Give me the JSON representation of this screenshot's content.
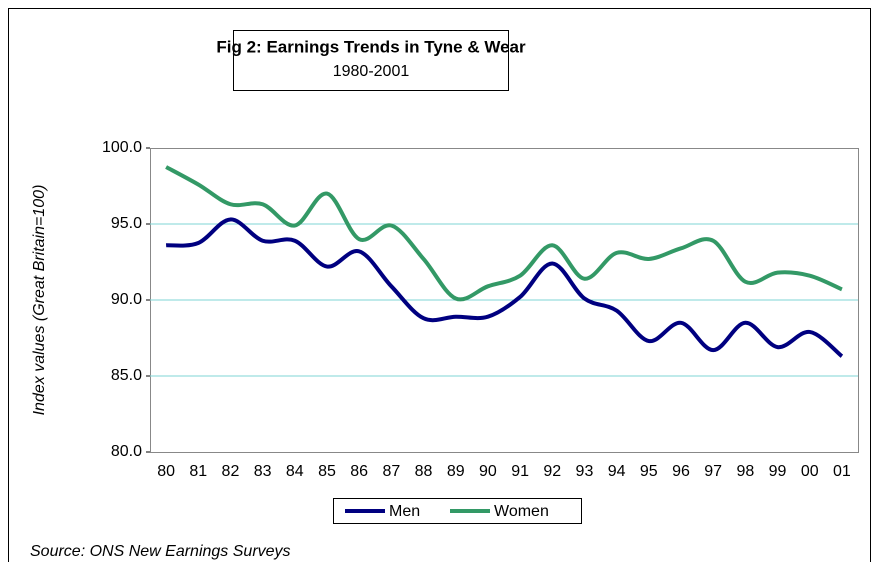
{
  "chart_data": {
    "type": "line",
    "title": "Fig 2: Earnings Trends in Tyne & Wear",
    "subtitle": "1980-2001",
    "y_label": "Index values (Great Britain=100)",
    "source": "Source: ONS New Earnings Surveys",
    "categories": [
      "80",
      "81",
      "82",
      "83",
      "84",
      "85",
      "86",
      "87",
      "88",
      "89",
      "90",
      "91",
      "92",
      "93",
      "94",
      "95",
      "96",
      "97",
      "98",
      "99",
      "00",
      "01"
    ],
    "series": [
      {
        "name": "Men",
        "color": "#000080",
        "values": [
          93.6,
          93.75,
          95.3,
          93.9,
          93.9,
          92.2,
          93.2,
          90.9,
          88.8,
          88.9,
          88.9,
          90.2,
          92.4,
          90.1,
          89.3,
          87.3,
          88.5,
          86.7,
          88.5,
          86.9,
          87.9,
          86.3
        ]
      },
      {
        "name": "Women",
        "color": "#339966",
        "values": [
          98.75,
          97.6,
          96.3,
          96.3,
          94.9,
          97.0,
          94.0,
          94.9,
          92.7,
          90.1,
          90.9,
          91.6,
          93.6,
          91.4,
          93.1,
          92.7,
          93.4,
          93.9,
          91.2,
          91.8,
          91.6,
          90.7
        ]
      }
    ],
    "ylim": [
      80,
      100
    ],
    "yticks": [
      {
        "value": 80,
        "label": "80.0"
      },
      {
        "value": 85,
        "label": "85.0"
      },
      {
        "value": 90,
        "label": "90.0"
      },
      {
        "value": 95,
        "label": "95.0"
      },
      {
        "value": 100,
        "label": "100.0"
      }
    ],
    "grid": true,
    "smooth": true,
    "legend": "bottom"
  }
}
